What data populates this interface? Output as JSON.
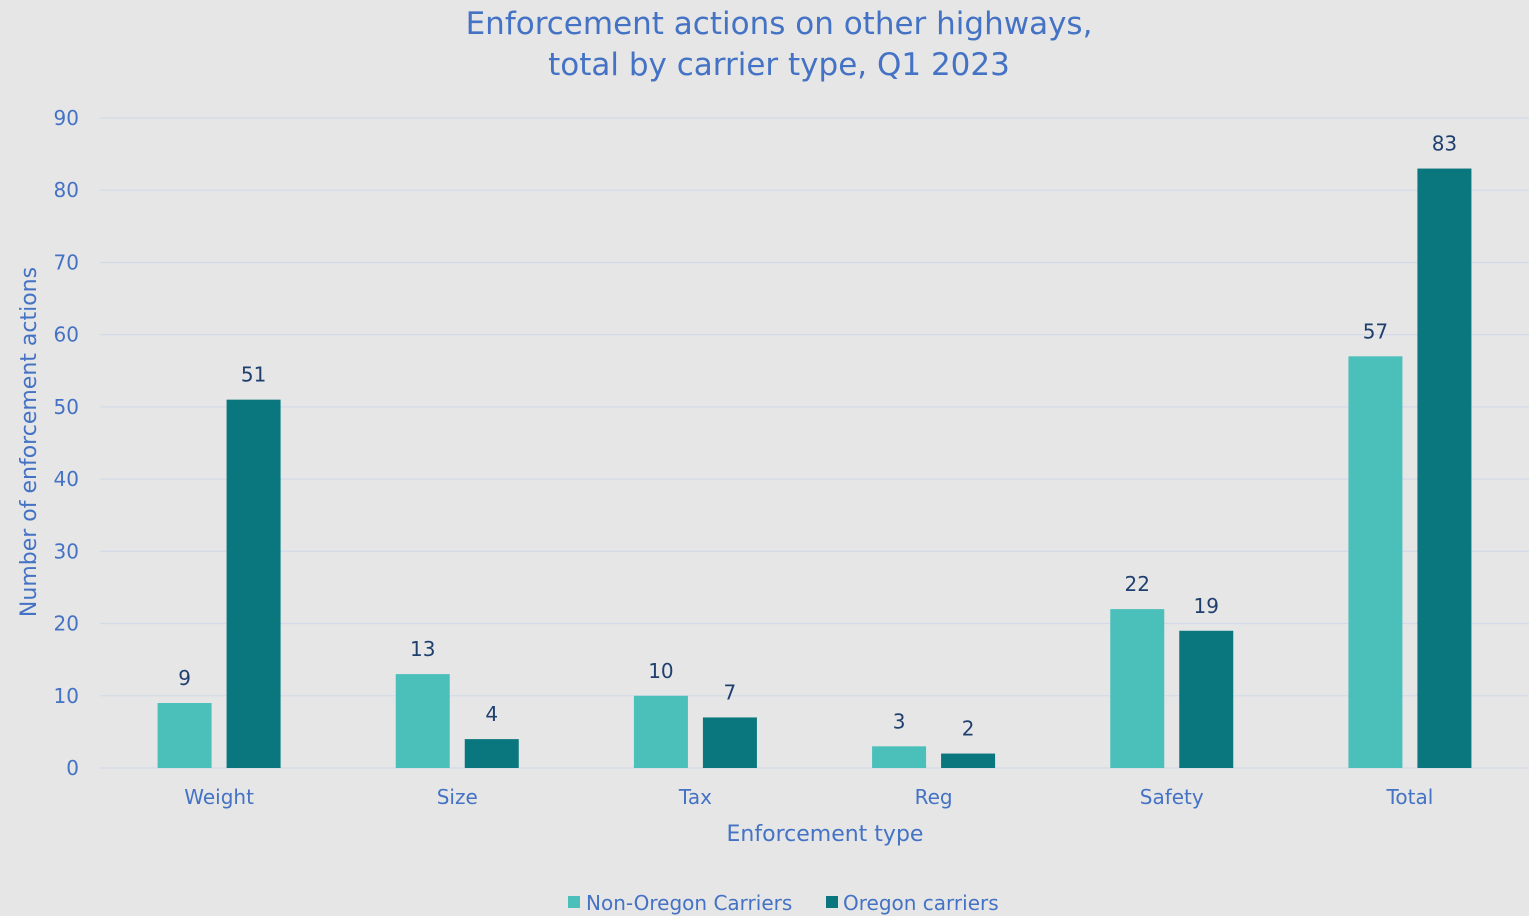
{
  "chart_data": {
    "type": "bar",
    "title_lines": [
      "Enforcement actions on other highways,",
      "total by carrier type, Q1 2023"
    ],
    "xlabel": "Enforcement type",
    "ylabel": "Number of enforcement actions",
    "categories": [
      "Weight",
      "Size",
      "Tax",
      "Reg",
      "Safety",
      "Total"
    ],
    "series": [
      {
        "name": "Non-Oregon Carriers",
        "values": [
          9,
          13,
          10,
          3,
          22,
          57
        ],
        "color": "#4bc0bb"
      },
      {
        "name": "Oregon carriers",
        "values": [
          51,
          4,
          7,
          2,
          19,
          83
        ],
        "color": "#0a767d"
      }
    ],
    "ylim": [
      0,
      90
    ],
    "yticks": [
      0,
      10,
      20,
      30,
      40,
      50,
      60,
      70,
      80,
      90
    ],
    "grid": true,
    "legend_position": "bottom",
    "background_color": "#e6e6e6",
    "text_color": "#4472c4"
  }
}
